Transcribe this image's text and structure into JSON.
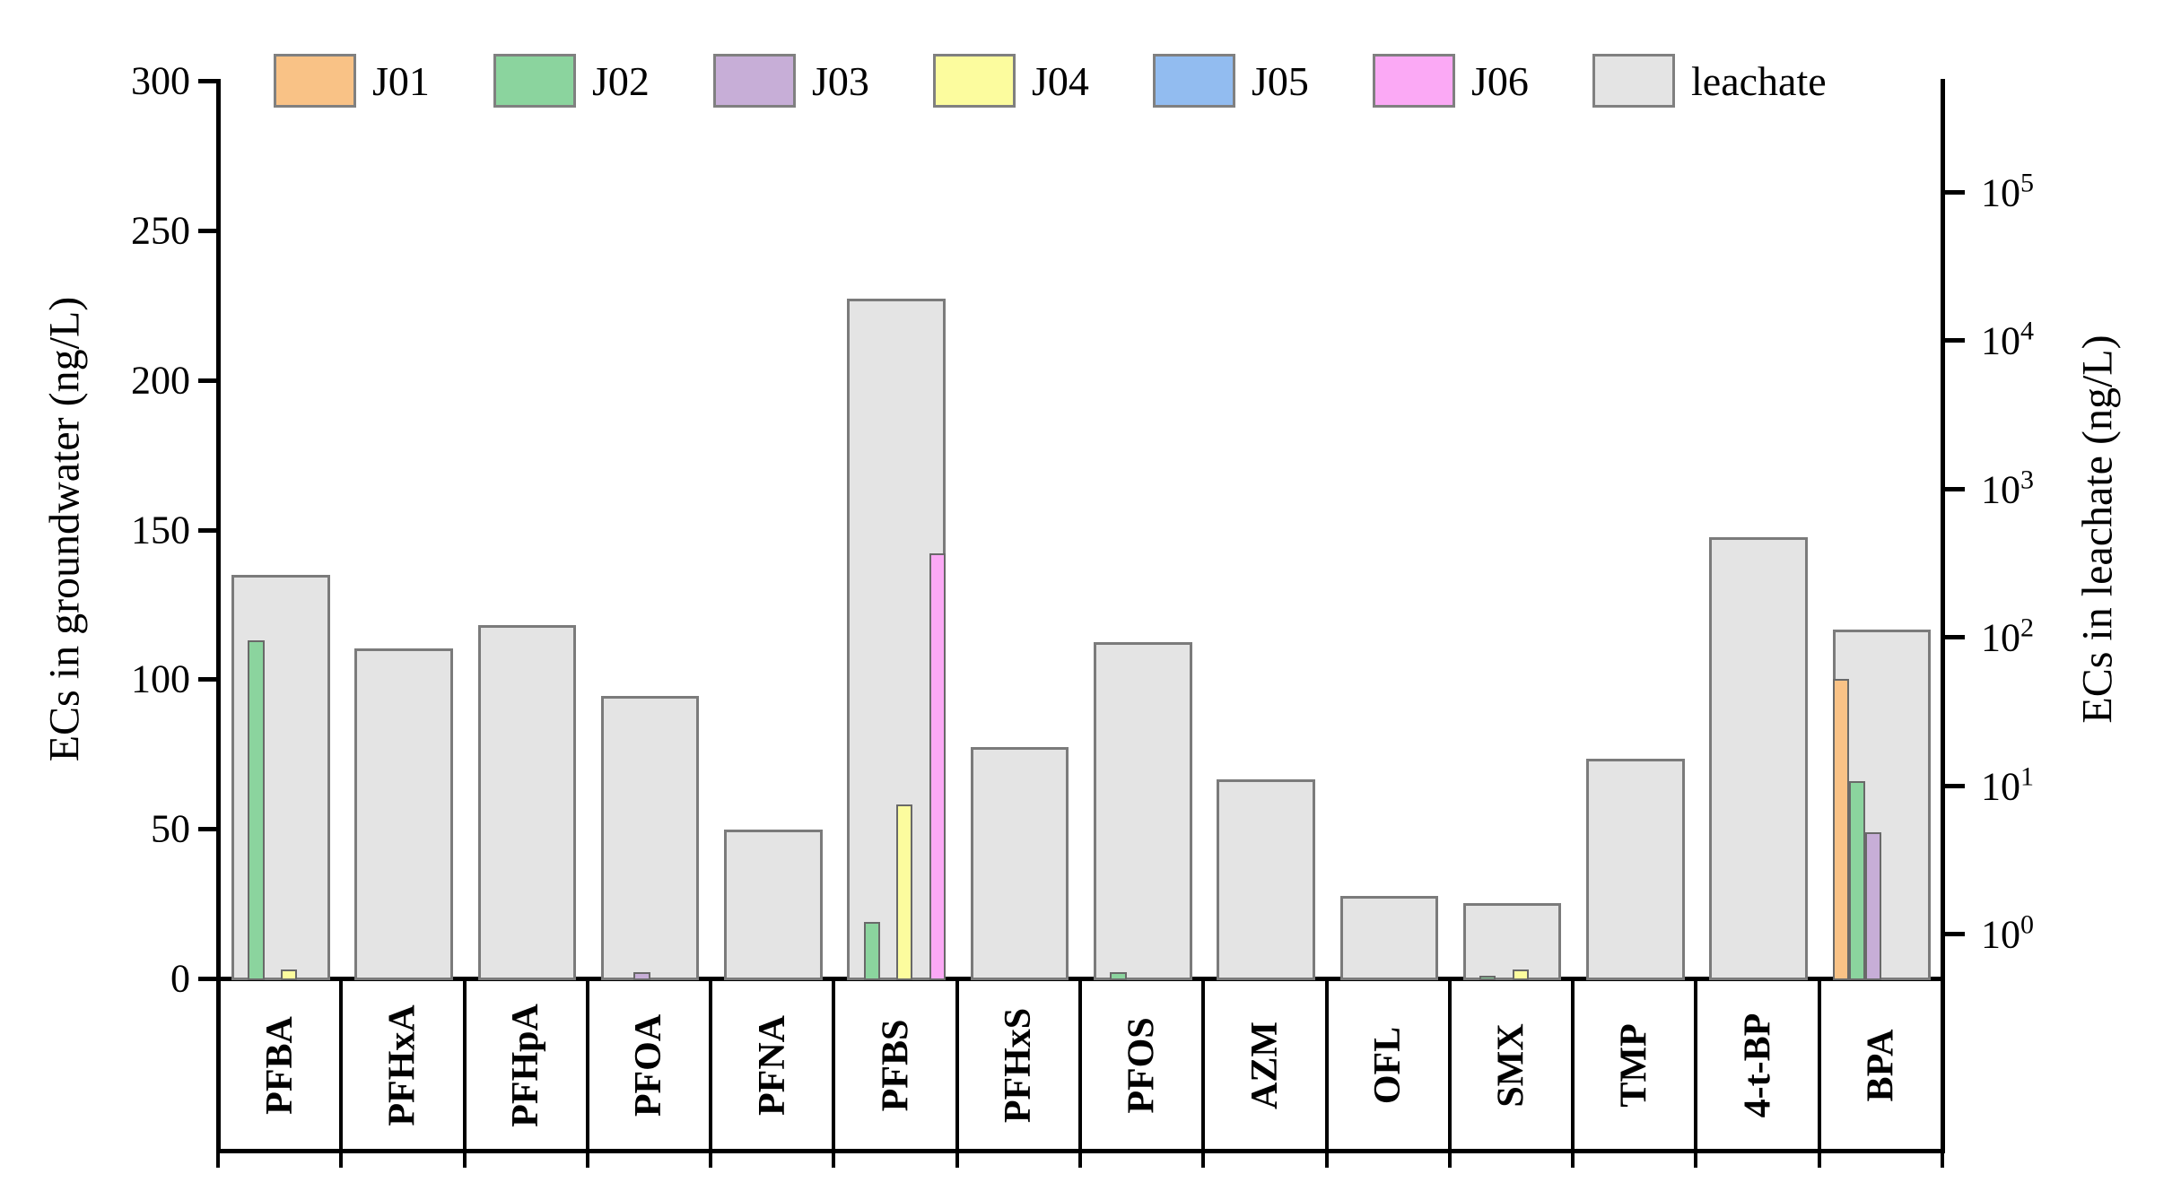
{
  "legend": {
    "items": [
      {
        "label": "J01",
        "color": "#f9c286"
      },
      {
        "label": "J02",
        "color": "#8bd49e"
      },
      {
        "label": "J03",
        "color": "#c7aed7"
      },
      {
        "label": "J04",
        "color": "#fcfc9e"
      },
      {
        "label": "J05",
        "color": "#92bcf0"
      },
      {
        "label": "J06",
        "color": "#fba9f5"
      },
      {
        "label": "leachate",
        "color": "#e4e4e4"
      }
    ]
  },
  "left_axis": {
    "title": "ECs in groundwater (ng/L)",
    "ticks": [
      0,
      50,
      100,
      150,
      200,
      250,
      300
    ],
    "min": 0,
    "max": 300
  },
  "right_axis": {
    "title": "ECs in leachate (ng/L)",
    "base": "10",
    "tick_exponents": [
      0,
      1,
      2,
      3,
      4,
      5
    ],
    "scale": "log"
  },
  "chart_data": {
    "type": "bar",
    "categories": [
      "PFBA",
      "PFHxA",
      "PFHpA",
      "PFOA",
      "PFNA",
      "PFBS",
      "PFHxS",
      "PFOS",
      "AZM",
      "OFL",
      "SMX",
      "TMP",
      "4-t-BP",
      "BPA"
    ],
    "series": [
      {
        "name": "J01",
        "axis": "left",
        "color": "#f9c286",
        "values": [
          0,
          0,
          0,
          0,
          0,
          0,
          0,
          0,
          0,
          0,
          0,
          0,
          0,
          100
        ]
      },
      {
        "name": "J02",
        "axis": "left",
        "color": "#8bd49e",
        "values": [
          113,
          0,
          0,
          0,
          0,
          19,
          0,
          2,
          0,
          0,
          1,
          0,
          0,
          66
        ]
      },
      {
        "name": "J03",
        "axis": "left",
        "color": "#c7aed7",
        "values": [
          0,
          0,
          0,
          2,
          0,
          0,
          0,
          0,
          0,
          0,
          0,
          0,
          0,
          49
        ]
      },
      {
        "name": "J04",
        "axis": "left",
        "color": "#fcfc9e",
        "values": [
          3,
          0,
          0,
          0,
          0,
          58,
          0,
          0,
          0,
          0,
          3,
          0,
          0,
          0
        ]
      },
      {
        "name": "J05",
        "axis": "left",
        "color": "#92bcf0",
        "values": [
          0,
          0,
          0,
          0,
          0,
          0,
          0,
          0,
          0,
          0,
          0,
          0,
          0,
          0
        ]
      },
      {
        "name": "J06",
        "axis": "left",
        "color": "#fba9f5",
        "values": [
          0,
          0,
          0,
          0,
          0,
          142,
          0,
          0,
          0,
          0,
          0,
          0,
          0,
          0
        ]
      }
    ],
    "leachate": {
      "name": "leachate",
      "axis": "right",
      "color": "#e4e4e4",
      "values": [
        260,
        83,
        120,
        40,
        5,
        19000,
        18,
        92,
        11,
        1.8,
        1.6,
        15,
        470,
        112
      ]
    },
    "left_ylim": [
      0,
      300
    ],
    "right_ylim_exponents": [
      -0.3,
      5.75
    ],
    "grid": false,
    "legend_position": "top"
  }
}
